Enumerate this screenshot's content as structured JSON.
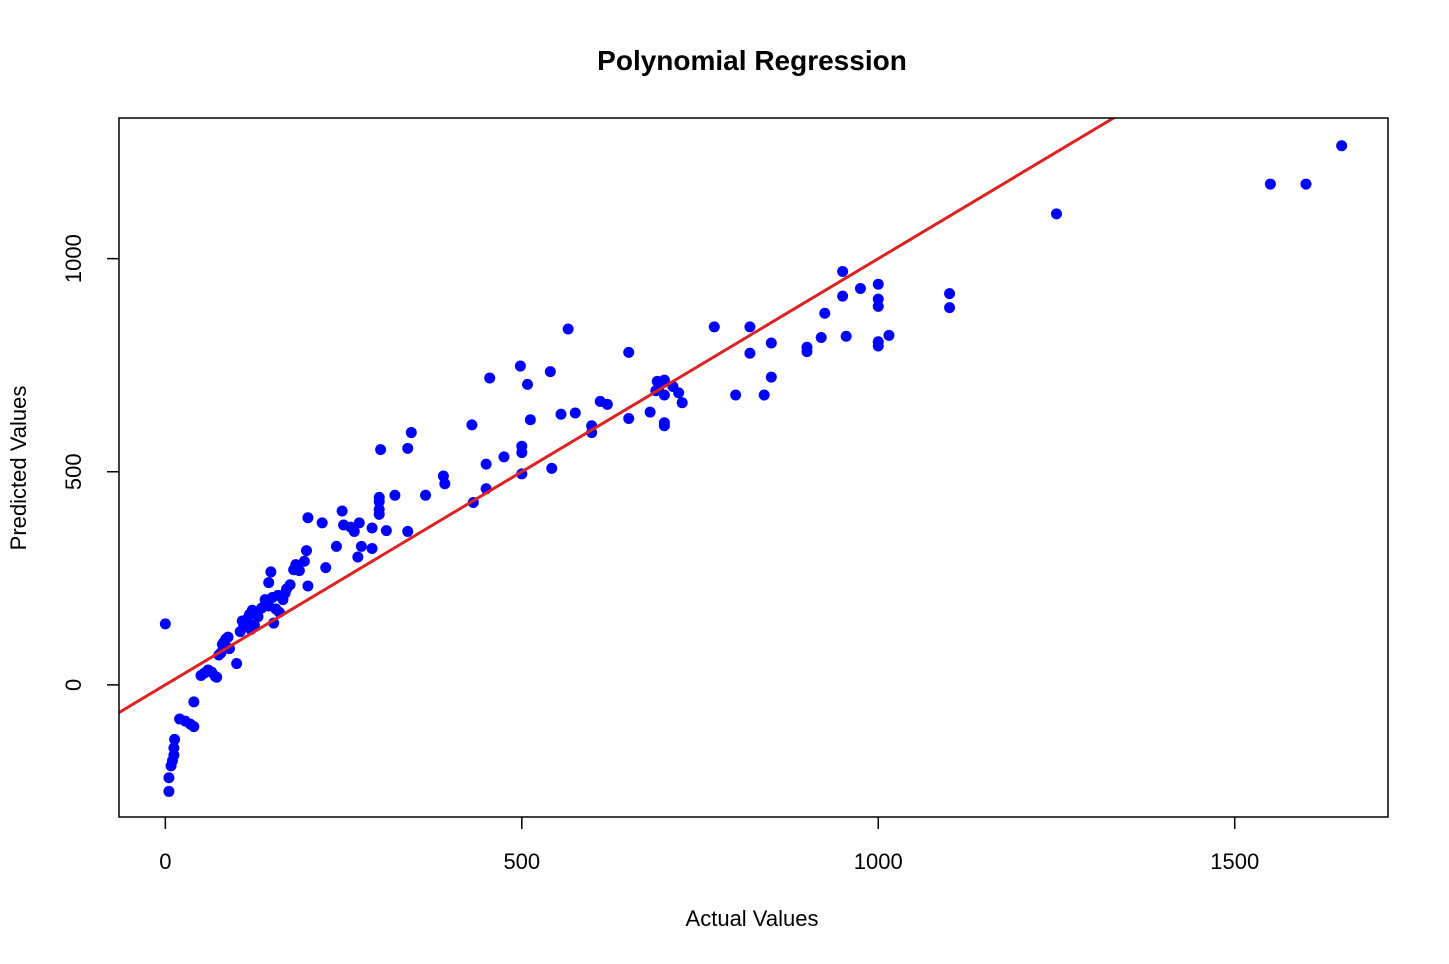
{
  "chart_data": {
    "type": "scatter",
    "title": "Polynomial Regression",
    "xlabel": "Actual Values",
    "ylabel": "Predicted Values",
    "xlim": [
      -65,
      1715
    ],
    "ylim": [
      -310,
      1330
    ],
    "xticks": [
      0,
      500,
      1000,
      1500
    ],
    "yticks": [
      0,
      500,
      1000
    ],
    "grid": false,
    "colors": {
      "points": "#0000ff",
      "line": "#dd2222",
      "frame": "#000000"
    },
    "reference_line": {
      "slope": 1,
      "intercept": 0,
      "label": ""
    },
    "points": [
      [
        0,
        143
      ],
      [
        5,
        -250
      ],
      [
        5,
        -218
      ],
      [
        8,
        -190
      ],
      [
        10,
        -178
      ],
      [
        12,
        -165
      ],
      [
        12,
        -148
      ],
      [
        13,
        -128
      ],
      [
        20,
        -80
      ],
      [
        28,
        -85
      ],
      [
        35,
        -92
      ],
      [
        40,
        -98
      ],
      [
        40,
        -40
      ],
      [
        50,
        22
      ],
      [
        55,
        28
      ],
      [
        60,
        35
      ],
      [
        65,
        30
      ],
      [
        70,
        20
      ],
      [
        72,
        18
      ],
      [
        75,
        70
      ],
      [
        78,
        75
      ],
      [
        80,
        95
      ],
      [
        82,
        100
      ],
      [
        85,
        108
      ],
      [
        88,
        112
      ],
      [
        90,
        85
      ],
      [
        100,
        50
      ],
      [
        105,
        125
      ],
      [
        108,
        150
      ],
      [
        110,
        140
      ],
      [
        115,
        155
      ],
      [
        118,
        165
      ],
      [
        120,
        130
      ],
      [
        122,
        175
      ],
      [
        125,
        140
      ],
      [
        130,
        160
      ],
      [
        135,
        180
      ],
      [
        140,
        200
      ],
      [
        145,
        185
      ],
      [
        145,
        240
      ],
      [
        148,
        265
      ],
      [
        150,
        205
      ],
      [
        152,
        145
      ],
      [
        155,
        178
      ],
      [
        158,
        210
      ],
      [
        160,
        170
      ],
      [
        165,
        200
      ],
      [
        168,
        215
      ],
      [
        170,
        225
      ],
      [
        175,
        235
      ],
      [
        180,
        270
      ],
      [
        183,
        282
      ],
      [
        188,
        268
      ],
      [
        195,
        290
      ],
      [
        198,
        315
      ],
      [
        200,
        392
      ],
      [
        200,
        232
      ],
      [
        220,
        380
      ],
      [
        225,
        275
      ],
      [
        240,
        325
      ],
      [
        248,
        408
      ],
      [
        250,
        375
      ],
      [
        260,
        370
      ],
      [
        265,
        360
      ],
      [
        270,
        300
      ],
      [
        272,
        380
      ],
      [
        275,
        325
      ],
      [
        290,
        320
      ],
      [
        290,
        368
      ],
      [
        300,
        440
      ],
      [
        300,
        430
      ],
      [
        300,
        412
      ],
      [
        300,
        400
      ],
      [
        302,
        552
      ],
      [
        310,
        362
      ],
      [
        322,
        445
      ],
      [
        340,
        555
      ],
      [
        340,
        360
      ],
      [
        345,
        592
      ],
      [
        365,
        445
      ],
      [
        390,
        490
      ],
      [
        392,
        472
      ],
      [
        430,
        610
      ],
      [
        432,
        428
      ],
      [
        450,
        460
      ],
      [
        450,
        518
      ],
      [
        455,
        720
      ],
      [
        475,
        535
      ],
      [
        498,
        748
      ],
      [
        500,
        560
      ],
      [
        500,
        545
      ],
      [
        500,
        495
      ],
      [
        508,
        705
      ],
      [
        512,
        622
      ],
      [
        540,
        735
      ],
      [
        542,
        508
      ],
      [
        555,
        635
      ],
      [
        565,
        835
      ],
      [
        575,
        638
      ],
      [
        598,
        608
      ],
      [
        598,
        592
      ],
      [
        610,
        665
      ],
      [
        620,
        658
      ],
      [
        650,
        625
      ],
      [
        650,
        780
      ],
      [
        680,
        640
      ],
      [
        688,
        690
      ],
      [
        690,
        712
      ],
      [
        692,
        698
      ],
      [
        700,
        715
      ],
      [
        700,
        680
      ],
      [
        700,
        615
      ],
      [
        700,
        608
      ],
      [
        712,
        700
      ],
      [
        720,
        685
      ],
      [
        725,
        662
      ],
      [
        770,
        840
      ],
      [
        800,
        680
      ],
      [
        820,
        840
      ],
      [
        820,
        778
      ],
      [
        840,
        680
      ],
      [
        850,
        802
      ],
      [
        850,
        722
      ],
      [
        900,
        792
      ],
      [
        900,
        782
      ],
      [
        920,
        815
      ],
      [
        925,
        872
      ],
      [
        950,
        970
      ],
      [
        950,
        912
      ],
      [
        955,
        818
      ],
      [
        975,
        930
      ],
      [
        1000,
        940
      ],
      [
        1000,
        905
      ],
      [
        1000,
        888
      ],
      [
        1000,
        805
      ],
      [
        1000,
        795
      ],
      [
        1015,
        820
      ],
      [
        1100,
        918
      ],
      [
        1100,
        885
      ],
      [
        1250,
        1105
      ],
      [
        1550,
        1175
      ],
      [
        1600,
        1175
      ],
      [
        1650,
        1265
      ]
    ]
  }
}
